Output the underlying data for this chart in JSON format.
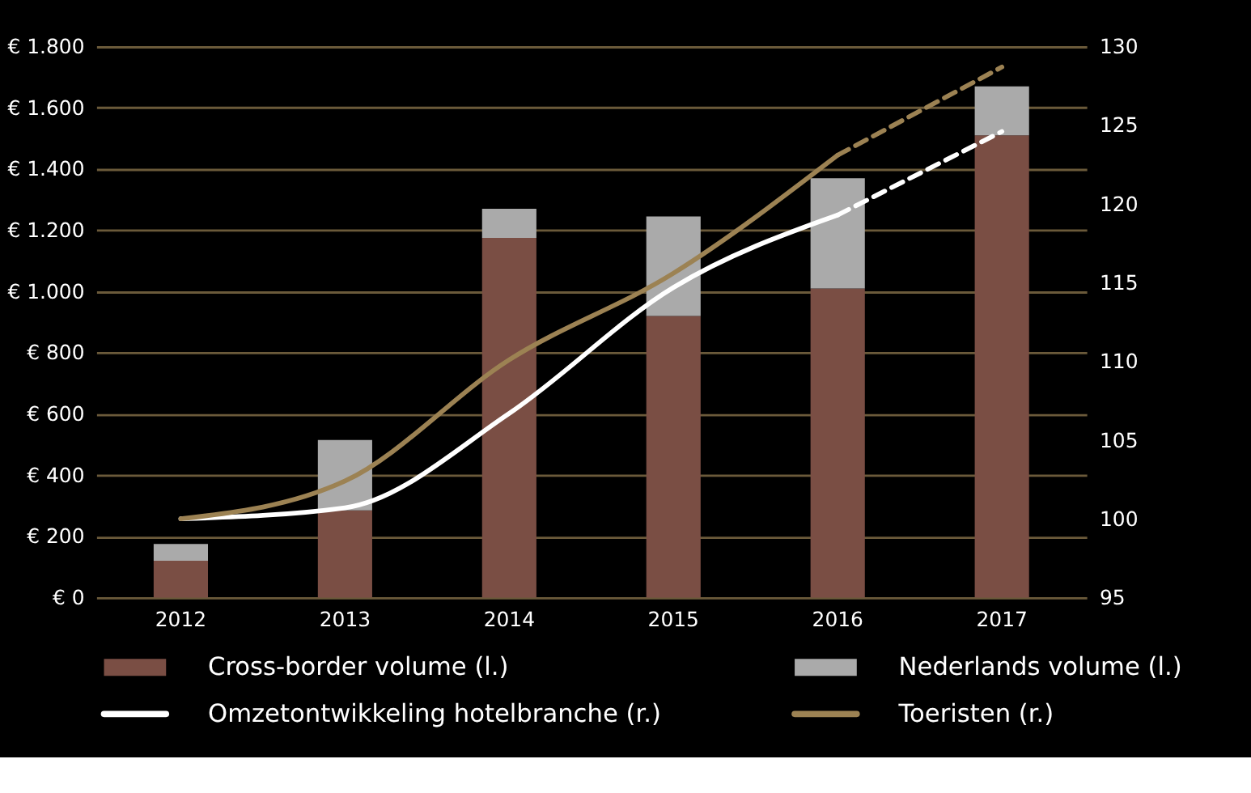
{
  "chart_data": {
    "type": "bar",
    "stacked": true,
    "categories": [
      "2012",
      "2013",
      "2014",
      "2015",
      "2016",
      "2017"
    ],
    "ylim": [
      0,
      1800
    ],
    "yticks": [
      {
        "value": 0,
        "label": "€ 0"
      },
      {
        "value": 200,
        "label": "€ 200"
      },
      {
        "value": 400,
        "label": "€ 400"
      },
      {
        "value": 600,
        "label": "€ 600"
      },
      {
        "value": 800,
        "label": "€ 800"
      },
      {
        "value": 1000,
        "label": "€ 1.000"
      },
      {
        "value": 1200,
        "label": "€ 1.200"
      },
      {
        "value": 1400,
        "label": "€ 1.400"
      },
      {
        "value": 1600,
        "label": "€ 1.600"
      },
      {
        "value": 1800,
        "label": "€ 1.800"
      }
    ],
    "y2lim": [
      95,
      130
    ],
    "y2ticks": [
      95,
      100,
      105,
      110,
      115,
      120,
      125,
      130
    ],
    "grid": "y",
    "legend": "bottom",
    "series": [
      {
        "name": "Cross-border volume (l.)",
        "color": "#7a4e44",
        "values": [
          120,
          285,
          1175,
          920,
          1010,
          1510
        ]
      },
      {
        "name": "Nederlands volume (l.)",
        "color": "#aaaaaa",
        "values": [
          55,
          230,
          95,
          325,
          360,
          160
        ]
      },
      {
        "name": "Omzetontwikkeling hotelbranche (r.)",
        "type": "line",
        "axis": "y2",
        "color": "#ffffff",
        "line_style": "solid",
        "values": [
          100,
          100.7,
          106.7,
          114.7,
          119.3,
          null
        ]
      },
      {
        "name": "Toeristen (r.)",
        "type": "line",
        "axis": "y2",
        "color": "#9c8253",
        "line_style": "solid",
        "values": [
          100,
          102.4,
          110.1,
          115.6,
          123.1,
          null
        ]
      },
      {
        "type": "line",
        "axis": "y2",
        "color": "#ffffff",
        "line_style": "dashed",
        "values": [
          null,
          null,
          null,
          null,
          119.3,
          124.6
        ]
      },
      {
        "type": "line",
        "axis": "y2",
        "color": "#9c8253",
        "line_style": "dashed",
        "values": [
          null,
          null,
          null,
          null,
          123.1,
          128.7
        ]
      }
    ]
  }
}
